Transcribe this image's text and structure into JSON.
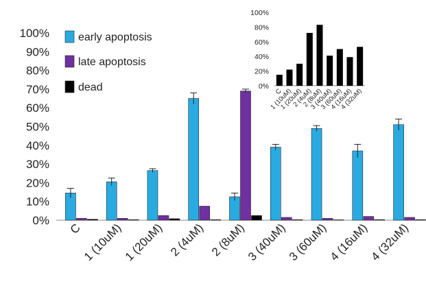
{
  "chart_data": [
    {
      "type": "bar",
      "categories": [
        "C",
        "1 (10uM)",
        "1 (20uM)",
        "2 (4uM)",
        "2 (8uM)",
        "3 (40uM)",
        "3 (60uM)",
        "4 (16uM)",
        "4 (32uM)"
      ],
      "series": [
        {
          "name": "early apoptosis",
          "color": "#29ABE2",
          "values": [
            14.5,
            20.5,
            26.5,
            65,
            12.5,
            39,
            49,
            37,
            51
          ],
          "errors": [
            2.5,
            2,
            1,
            3,
            2,
            1.5,
            1.5,
            3.5,
            3
          ]
        },
        {
          "name": "late apoptosis",
          "color": "#7030A0",
          "values": [
            1,
            1,
            2.5,
            7.5,
            69,
            1.5,
            1,
            2,
            1.5
          ],
          "errors": [
            0,
            0,
            0,
            0,
            1,
            0,
            0,
            0,
            0
          ]
        },
        {
          "name": "dead",
          "color": "#000000",
          "values": [
            0.5,
            0.3,
            0.8,
            0.3,
            2.5,
            0.3,
            0,
            0.3,
            0.3
          ],
          "errors": [
            0,
            0,
            0,
            0,
            0,
            0,
            0,
            0,
            0
          ]
        }
      ],
      "yticks": [
        "0%",
        "10%",
        "20%",
        "30%",
        "40%",
        "50%",
        "60%",
        "70%",
        "80%",
        "90%",
        "100%"
      ],
      "ylim": [
        0,
        100
      ],
      "grid": false,
      "legend": "top-left",
      "title": "",
      "xlabel": "",
      "ylabel": ""
    },
    {
      "type": "bar",
      "categories": [
        "C",
        "1 (10uM)",
        "1 (20uM)",
        "2 (4uM)",
        "2 (8uM)",
        "3 (40uM)",
        "3 (60uM)",
        "4 (16uM)",
        "4 (32uM)"
      ],
      "values": [
        15,
        22,
        30,
        72,
        83,
        41,
        50,
        39,
        53
      ],
      "color": "#000000",
      "yticks": [
        "0%",
        "20%",
        "40%",
        "60%",
        "80%",
        "100%"
      ],
      "ylim": [
        0,
        100
      ],
      "grid": false,
      "title": "",
      "xlabel": "",
      "ylabel": ""
    }
  ]
}
